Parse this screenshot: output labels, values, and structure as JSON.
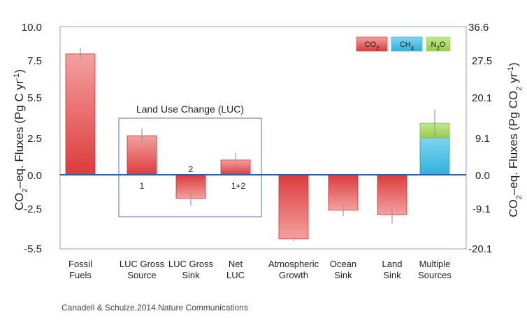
{
  "source_note": "Canadell & Schulze.2014.Nature Communications",
  "chart_data": {
    "type": "bar",
    "title": "",
    "ylabel_left": "CO2-eq. Fluxes (Pg C yr-1)",
    "ylabel_right": "CO2-eq. Fluxes (Pg CO2 yr-1)",
    "ylim": [
      -5.5,
      10.0
    ],
    "yticks_left": [
      "10.0",
      "7.5",
      "5.5",
      "2.5",
      "0.0",
      "-2.5",
      "-5.5"
    ],
    "yticks_right": [
      "36.6",
      "27.5",
      "20.1",
      "9.1",
      "0.0",
      "-9.1",
      "-20.1"
    ],
    "categories": [
      [
        "Fossil",
        "Fuels"
      ],
      [
        "LUC Gross",
        "Source"
      ],
      [
        "LUC Gross",
        "Sink"
      ],
      [
        "Net",
        "LUC"
      ],
      [
        "Atmospheric",
        "Growth"
      ],
      [
        "Ocean",
        "Sink"
      ],
      [
        "Land",
        "Sink"
      ],
      [
        "Multiple",
        "Sources"
      ]
    ],
    "series": [
      {
        "name": "CO2",
        "color": "#e84a4a",
        "values": [
          8.2,
          2.65,
          -1.6,
          1.0,
          -4.35,
          -2.4,
          -2.7,
          null
        ],
        "errors": [
          0.4,
          0.5,
          0.5,
          0.5,
          0.15,
          0.4,
          0.6,
          null
        ]
      },
      {
        "name": "CH4",
        "color": "#3bb7e0",
        "values": [
          null,
          null,
          null,
          null,
          null,
          null,
          null,
          2.5
        ],
        "errors": [
          null,
          null,
          null,
          null,
          null,
          null,
          null,
          null
        ]
      },
      {
        "name": "N2O",
        "color": "#a8d860",
        "values": [
          null,
          null,
          null,
          null,
          null,
          null,
          null,
          1.0
        ],
        "errors": [
          null,
          null,
          null,
          null,
          null,
          null,
          null,
          0.9
        ]
      }
    ],
    "legend": {
      "position": "top-right",
      "entries": [
        {
          "label": "CO2",
          "base": "CO",
          "sub": "2",
          "color": "#e84a4a"
        },
        {
          "label": "CH4",
          "base": "CH",
          "sub": "4",
          "color": "#3bb7e0"
        },
        {
          "label": "N2O",
          "base": "N",
          "sub": "2",
          "tail": "O",
          "color": "#a8d860"
        }
      ]
    },
    "annotations": {
      "luc_box_label": "Land Use Change (LUC)",
      "label_1": "1",
      "label_2": "2",
      "label_sum": "1+2"
    },
    "grid": false
  }
}
